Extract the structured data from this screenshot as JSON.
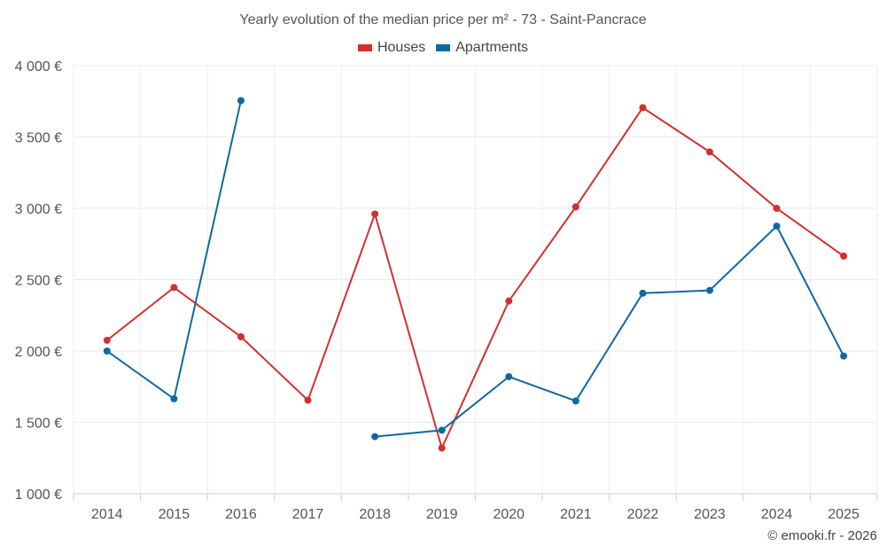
{
  "chart_data": {
    "type": "line",
    "title": "Yearly evolution of the median price per m² - 73 - Saint-Pancrace",
    "categories": [
      "2014",
      "2015",
      "2016",
      "2017",
      "2018",
      "2019",
      "2020",
      "2021",
      "2022",
      "2023",
      "2024",
      "2025"
    ],
    "ylim": [
      1000,
      4000
    ],
    "yticks": [
      1000,
      1500,
      2000,
      2500,
      3000,
      3500,
      4000
    ],
    "ytick_labels": [
      "1 000 €",
      "1 500 €",
      "2 000 €",
      "2 500 €",
      "3 000 €",
      "3 500 €",
      "4 000 €"
    ],
    "xlabel": "",
    "ylabel": "",
    "grid": true,
    "legend_position": "top-center",
    "series": [
      {
        "name": "Houses",
        "color": "#d32f2f",
        "values": [
          2075,
          2445,
          2100,
          1655,
          2960,
          1320,
          2350,
          3010,
          3705,
          3395,
          3000,
          2665
        ]
      },
      {
        "name": "Apartments",
        "color": "#0d6aa0",
        "values": [
          2000,
          1665,
          3755,
          null,
          1400,
          1445,
          1820,
          1650,
          2405,
          2425,
          2875,
          1965
        ]
      }
    ]
  },
  "footer": {
    "credit": "© emooki.fr - 2026"
  }
}
